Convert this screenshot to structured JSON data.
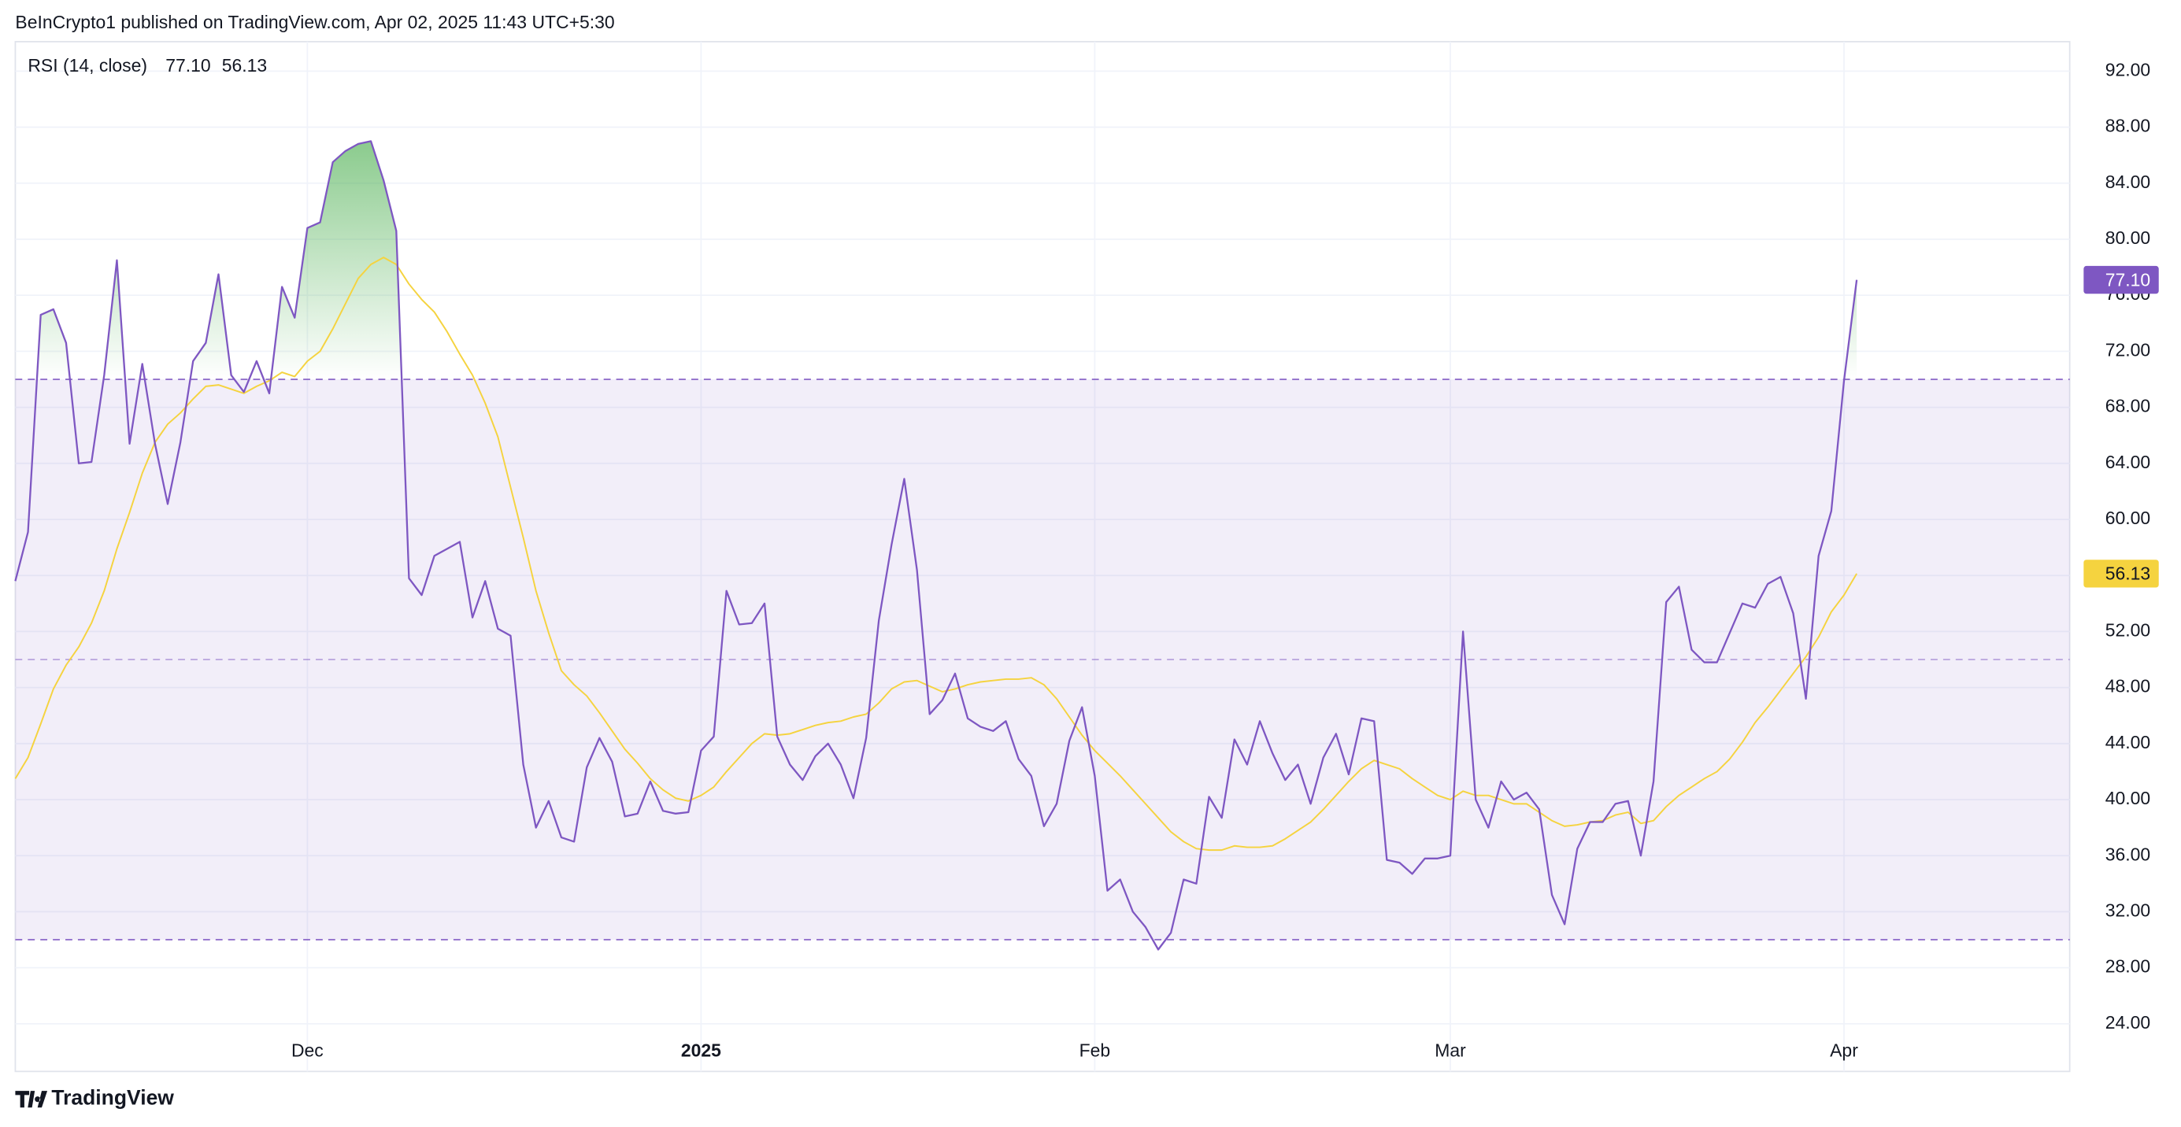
{
  "chart_data": {
    "type": "line",
    "attribution": "BeInCrypto1 published on TradingView.com, Apr 02, 2025 11:43 UTC+5:30",
    "indicator": "RSI (14, close)",
    "brand": "TradingView",
    "categories": [
      null,
      null,
      null,
      null,
      null,
      null,
      null,
      null,
      null,
      null,
      null,
      null,
      null,
      null,
      null,
      null,
      null,
      null,
      null,
      null,
      null,
      null,
      null,
      "Dec",
      null,
      null,
      null,
      null,
      null,
      null,
      null,
      null,
      null,
      null,
      null,
      null,
      null,
      null,
      null,
      null,
      null,
      null,
      null,
      null,
      null,
      null,
      null,
      null,
      null,
      null,
      null,
      null,
      null,
      null,
      "2025",
      null,
      null,
      null,
      null,
      null,
      null,
      null,
      null,
      null,
      null,
      null,
      null,
      null,
      null,
      null,
      null,
      null,
      null,
      null,
      null,
      null,
      null,
      null,
      null,
      null,
      null,
      null,
      null,
      null,
      null,
      "Feb",
      null,
      null,
      null,
      null,
      null,
      null,
      null,
      null,
      null,
      null,
      null,
      null,
      null,
      null,
      null,
      null,
      null,
      null,
      null,
      null,
      null,
      null,
      null,
      null,
      null,
      null,
      null,
      "Mar",
      null,
      null,
      null,
      null,
      null,
      null,
      null,
      null,
      null,
      null,
      null,
      null,
      null,
      null,
      null,
      null,
      null,
      null,
      null,
      null,
      null,
      null,
      null,
      null,
      null,
      null,
      null,
      null,
      null,
      null,
      "Apr",
      null
    ],
    "series": [
      {
        "color": "#7e57c2",
        "emphasis": true,
        "last_label": "77.10",
        "label_color": "#ffffff",
        "values": [
          55.6,
          59.1,
          74.6,
          75.0,
          72.6,
          64.0,
          64.1,
          70.3,
          78.5,
          65.4,
          71.1,
          65.4,
          61.1,
          65.5,
          71.3,
          72.6,
          77.5,
          70.3,
          69.1,
          71.3,
          69.0,
          76.6,
          74.4,
          80.8,
          81.2,
          85.5,
          86.3,
          86.8,
          87.0,
          84.2,
          80.6,
          55.8,
          54.6,
          57.4,
          57.9,
          58.4,
          53.0,
          55.6,
          52.2,
          51.7,
          42.5,
          38.0,
          39.9,
          37.3,
          37.0,
          42.3,
          44.4,
          42.7,
          38.8,
          39.0,
          41.3,
          39.2,
          39.0,
          39.1,
          43.5,
          44.5,
          54.9,
          52.5,
          52.6,
          54.0,
          44.5,
          42.5,
          41.4,
          43.1,
          44.0,
          42.5,
          40.1,
          44.4,
          52.8,
          58.2,
          62.9,
          56.4,
          46.1,
          47.1,
          49.0,
          45.8,
          45.2,
          44.9,
          45.6,
          42.9,
          41.7,
          38.1,
          39.7,
          44.2,
          46.6,
          41.7,
          33.5,
          34.3,
          32.0,
          30.9,
          29.3,
          30.5,
          34.3,
          34.0,
          40.2,
          38.7,
          44.3,
          42.5,
          45.6,
          43.3,
          41.4,
          42.5,
          39.7,
          43.0,
          44.7,
          41.8,
          45.8,
          45.6,
          35.7,
          35.5,
          34.7,
          35.8,
          35.8,
          36.0,
          52.0,
          40.0,
          38.0,
          41.3,
          40.0,
          40.5,
          39.3,
          33.2,
          31.1,
          36.5,
          38.4,
          38.4,
          39.7,
          39.9,
          36.0,
          41.3,
          54.1,
          55.2,
          50.7,
          49.8,
          49.8,
          51.9,
          54.0,
          53.7,
          55.4,
          55.9,
          53.3,
          47.2,
          57.4,
          60.6,
          69.9,
          77.1
        ]
      },
      {
        "color": "#f5d33f",
        "emphasis": false,
        "last_label": "56.13",
        "label_color": "#131722",
        "values": [
          41.5,
          43.0,
          45.4,
          47.9,
          49.6,
          50.9,
          52.6,
          54.9,
          57.9,
          60.5,
          63.3,
          65.5,
          66.8,
          67.6,
          68.6,
          69.5,
          69.6,
          69.3,
          69.0,
          69.5,
          69.9,
          70.5,
          70.2,
          71.3,
          72.0,
          73.6,
          75.4,
          77.2,
          78.2,
          78.7,
          78.2,
          76.8,
          75.7,
          74.8,
          73.4,
          71.8,
          70.3,
          68.3,
          65.9,
          62.3,
          58.7,
          54.9,
          51.9,
          49.2,
          48.2,
          47.4,
          46.2,
          44.9,
          43.6,
          42.6,
          41.5,
          40.7,
          40.1,
          39.9,
          40.3,
          40.9,
          42.0,
          43.0,
          44.0,
          44.7,
          44.6,
          44.7,
          45.0,
          45.3,
          45.5,
          45.6,
          45.9,
          46.1,
          46.9,
          47.9,
          48.4,
          48.5,
          48.1,
          47.7,
          47.9,
          48.2,
          48.4,
          48.5,
          48.6,
          48.6,
          48.7,
          48.2,
          47.2,
          45.9,
          44.6,
          43.5,
          42.6,
          41.7,
          40.7,
          39.7,
          38.7,
          37.7,
          37.0,
          36.5,
          36.4,
          36.4,
          36.7,
          36.6,
          36.6,
          36.7,
          37.2,
          37.8,
          38.4,
          39.3,
          40.3,
          41.3,
          42.2,
          42.8,
          42.5,
          42.2,
          41.5,
          40.9,
          40.3,
          40.0,
          40.6,
          40.3,
          40.3,
          40.0,
          39.7,
          39.7,
          39.1,
          38.5,
          38.1,
          38.2,
          38.4,
          38.5,
          38.9,
          39.1,
          38.3,
          38.5,
          39.5,
          40.3,
          40.9,
          41.5,
          42.0,
          42.9,
          44.1,
          45.5,
          46.6,
          47.8,
          49.0,
          50.2,
          51.6,
          53.4,
          54.6,
          56.13
        ]
      }
    ],
    "bands": [
      70,
      50,
      30
    ],
    "band_color": "#7e57c2",
    "overbought_color": "#4caf50",
    "ylim": [
      20.6,
      94.1
    ],
    "yticks": [
      {
        "value": 24,
        "label": "24.00"
      },
      {
        "value": 28,
        "label": "28.00"
      },
      {
        "value": 32,
        "label": "32.00"
      },
      {
        "value": 36,
        "label": "36.00"
      },
      {
        "value": 40,
        "label": "40.00"
      },
      {
        "value": 44,
        "label": "44.00"
      },
      {
        "value": 48,
        "label": "48.00"
      },
      {
        "value": 52,
        "label": "52.00"
      },
      {
        "value": 56,
        "label": "56.00"
      },
      {
        "value": 60,
        "label": "60.00"
      },
      {
        "value": 64,
        "label": "64.00"
      },
      {
        "value": 68,
        "label": "68.00"
      },
      {
        "value": 72,
        "label": "72.00"
      },
      {
        "value": 76,
        "label": "76.00"
      },
      {
        "value": 80,
        "label": "80.00"
      },
      {
        "value": 84,
        "label": "84.00"
      },
      {
        "value": 88,
        "label": "88.00"
      },
      {
        "value": 92,
        "label": "92.00"
      }
    ],
    "grid": true
  }
}
